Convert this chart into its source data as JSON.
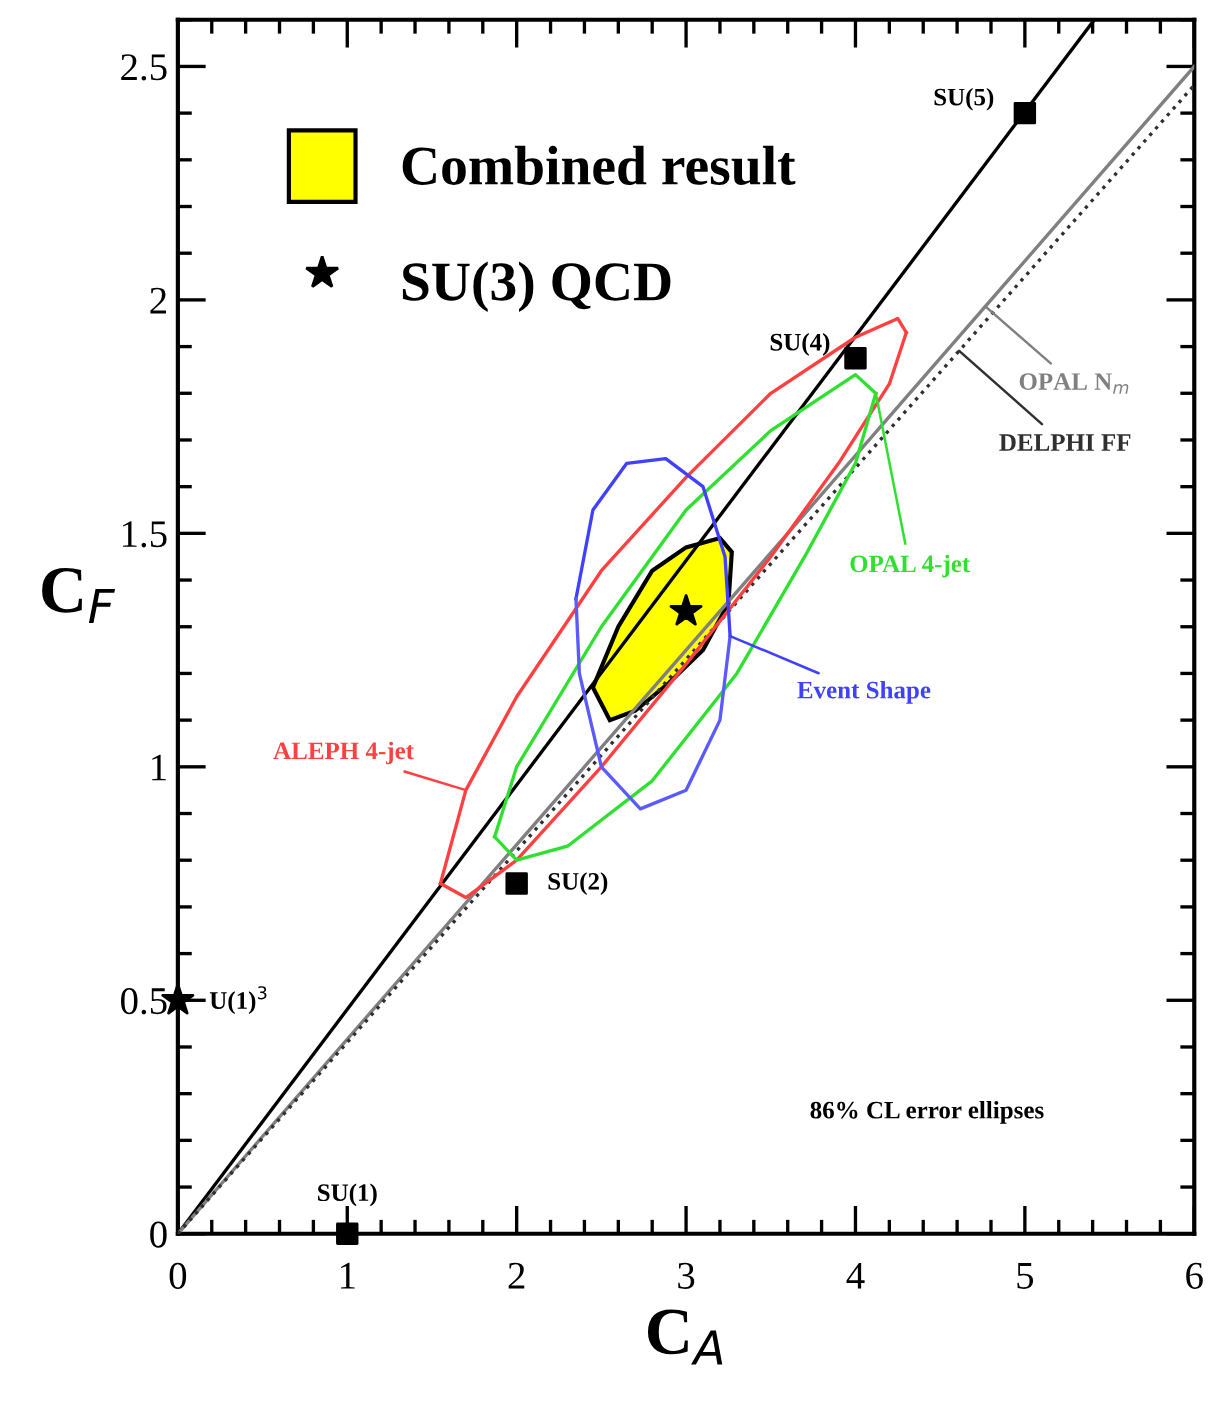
{
  "chart_data": {
    "type": "line",
    "xlabel": "C$_{A}$",
    "ylabel": "C$_{F}$",
    "xlim": [
      0,
      6
    ],
    "ylim": [
      0,
      2.6
    ],
    "xticks": [
      0,
      1,
      2,
      3,
      4,
      5,
      6
    ],
    "yticks": [
      0,
      0.5,
      1,
      1.5,
      2,
      2.5
    ],
    "grid": false,
    "legend": "top left",
    "series": [
      {
        "color": "#000000",
        "line_style": "solid",
        "x": [
          0,
          5.41
        ],
        "values": [
          0,
          2.6
        ]
      },
      {
        "name": "OPAL N$_{m}$",
        "color": "#808080",
        "line_style": "solid",
        "x": [
          0,
          6
        ],
        "values": [
          0,
          2.5
        ]
      },
      {
        "name": "DELPHI FF",
        "color": "#303030",
        "line_style": "dotted",
        "x": [
          0,
          6
        ],
        "values": [
          0,
          2.46
        ]
      },
      {
        "name": "ALEPH 4-jet",
        "color": "#ff4040",
        "line_style": "solid",
        "x": [
          1.55,
          1.7,
          2.0,
          2.5,
          3.0,
          3.5,
          4.0,
          4.25,
          4.3
        ],
        "values": [
          0.75,
          0.95,
          1.15,
          1.42,
          1.62,
          1.8,
          1.92,
          1.96,
          1.93
        ]
      },
      {
        "color": "#ff4040",
        "line_style": "solid",
        "x": [
          1.55,
          1.7,
          2.0,
          2.5,
          3.0,
          3.5,
          3.9,
          4.2,
          4.3
        ],
        "values": [
          0.75,
          0.72,
          0.8,
          1.0,
          1.22,
          1.45,
          1.65,
          1.82,
          1.93
        ]
      },
      {
        "name": "OPAL 4-jet",
        "color": "#30e030",
        "line_style": "solid",
        "x": [
          1.87,
          2.0,
          2.5,
          3.0,
          3.5,
          4.0,
          4.12
        ],
        "values": [
          0.85,
          1.0,
          1.3,
          1.55,
          1.72,
          1.84,
          1.8
        ]
      },
      {
        "color": "#30e030",
        "line_style": "solid",
        "x": [
          1.87,
          2.0,
          2.3,
          2.8,
          3.3,
          3.7,
          4.0,
          4.12
        ],
        "values": [
          0.85,
          0.8,
          0.83,
          0.97,
          1.2,
          1.45,
          1.65,
          1.8
        ]
      },
      {
        "name": "Event Shape",
        "color": "#4040ff",
        "line_style": "solid",
        "x": [
          2.35,
          2.45,
          2.65,
          2.88,
          3.1,
          3.23,
          3.26
        ],
        "values": [
          1.36,
          1.55,
          1.65,
          1.66,
          1.6,
          1.45,
          1.28
        ]
      },
      {
        "color": "#5a5aff",
        "line_style": "solid",
        "x": [
          2.35,
          2.37,
          2.5,
          2.73,
          3.0,
          3.2,
          3.26
        ],
        "values": [
          1.36,
          1.2,
          1.0,
          0.91,
          0.95,
          1.1,
          1.28
        ]
      },
      {
        "type": "area",
        "name": "Combined result",
        "color": "#ffff00",
        "x": [
          2.45,
          2.6,
          2.8,
          3.0,
          3.2,
          3.27,
          3.25,
          3.1,
          2.9,
          2.7,
          2.55,
          2.45
        ],
        "values": [
          1.17,
          1.3,
          1.42,
          1.47,
          1.49,
          1.46,
          1.35,
          1.25,
          1.18,
          1.12,
          1.1,
          1.17
        ]
      },
      {
        "type": "scatter",
        "marker": "square",
        "color": "#000000",
        "x": [
          1,
          2,
          4,
          5
        ],
        "values": [
          0,
          0.75,
          1.875,
          2.4
        ],
        "value_labels": [
          "SU(1)",
          "SU(2)",
          "SU(4)",
          "SU(5)"
        ]
      },
      {
        "type": "scatter",
        "marker": "star",
        "color": "#000000",
        "x": [
          0
        ],
        "values": [
          0.5
        ],
        "value_labels": [
          "U(1)$^{3}$"
        ]
      },
      {
        "type": "scatter",
        "name": "SU(3) QCD",
        "marker": "star",
        "color": "#000000",
        "x": [
          3
        ],
        "values": [
          1.333
        ]
      }
    ],
    "annotations": [
      "86% CL error ellipses"
    ]
  }
}
